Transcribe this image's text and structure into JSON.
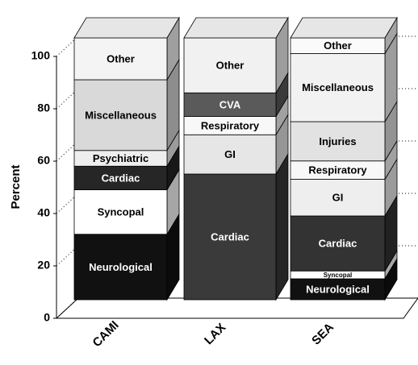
{
  "chart_data": {
    "type": "stacked_bar_3d",
    "y_label": "Percent",
    "ylim": [
      0,
      100
    ],
    "yticks": [
      0,
      20,
      40,
      60,
      80,
      100
    ],
    "grid": true,
    "bars": [
      {
        "category": "CAMI",
        "segments": [
          {
            "name": "Neurological",
            "value": 25,
            "color": "#111111"
          },
          {
            "name": "Syncopal",
            "value": 17,
            "color": "#ffffff"
          },
          {
            "name": "Cardiac",
            "value": 9,
            "color": "#262626"
          },
          {
            "name": "Psychiatric",
            "value": 6,
            "color": "#eeeeee"
          },
          {
            "name": "Miscellaneous",
            "value": 27,
            "color": "#d9d9d9"
          },
          {
            "name": "Other",
            "value": 16,
            "color": "#f4f4f4"
          }
        ]
      },
      {
        "category": "LAX",
        "segments": [
          {
            "name": "Cardiac",
            "value": 48,
            "color": "#3a3a3a"
          },
          {
            "name": "GI",
            "value": 15,
            "color": "#e6e6e6"
          },
          {
            "name": "Respiratory",
            "value": 7,
            "color": "#f8f8f8"
          },
          {
            "name": "CVA",
            "value": 9,
            "color": "#5a5a5a"
          },
          {
            "name": "Other",
            "value": 21,
            "color": "#f1f1f1"
          }
        ]
      },
      {
        "category": "SEA",
        "segments": [
          {
            "name": "Neurological",
            "value": 8,
            "color": "#111111"
          },
          {
            "name": "Syncopal",
            "value": 3,
            "color": "#ffffff"
          },
          {
            "name": "Cardiac",
            "value": 21,
            "color": "#333333"
          },
          {
            "name": "GI",
            "value": 14,
            "color": "#eeeeee"
          },
          {
            "name": "Respiratory",
            "value": 7,
            "color": "#f8f8f8"
          },
          {
            "name": "Injuries",
            "value": 15,
            "color": "#e2e2e2"
          },
          {
            "name": "Miscellaneous",
            "value": 26,
            "color": "#f2f2f2"
          },
          {
            "name": "Other",
            "value": 6,
            "color": "#fafafa"
          }
        ]
      }
    ]
  }
}
